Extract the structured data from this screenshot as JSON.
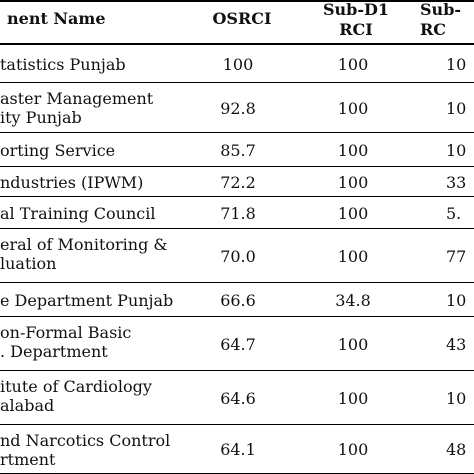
{
  "header": {
    "name": "nent Name",
    "osrci": "OSRCI",
    "sub_d1": "Sub-D1\nRCI",
    "sub_d2": "Sub-\nRC"
  },
  "rows": [
    {
      "name": "tatistics Punjab",
      "osrci": "100",
      "sub_d1": "100",
      "sub_d2": "10"
    },
    {
      "name": "aster Management\nity Punjab",
      "osrci": "92.8",
      "sub_d1": "100",
      "sub_d2": "10"
    },
    {
      "name": "orting Service",
      "osrci": "85.7",
      "sub_d1": "100",
      "sub_d2": "10"
    },
    {
      "name": "ndustries (IPWM)",
      "osrci": "72.2",
      "sub_d1": "100",
      "sub_d2": "33"
    },
    {
      "name": "al Training Council",
      "osrci": "71.8",
      "sub_d1": "100",
      "sub_d2": "5."
    },
    {
      "name": "eral of Monitoring &\nluation",
      "osrci": "70.0",
      "sub_d1": "100",
      "sub_d2": "77"
    },
    {
      "name": "e Department Punjab",
      "osrci": "66.6",
      "sub_d1": "34.8",
      "sub_d2": "10"
    },
    {
      "name": "on-Formal Basic\n. Department",
      "osrci": "64.7",
      "sub_d1": "100",
      "sub_d2": "43"
    },
    {
      "name": "itute of Cardiology\nalabad",
      "osrci": "64.6",
      "sub_d1": "100",
      "sub_d2": "10"
    },
    {
      "name": "nd Narcotics Control\nrtment",
      "osrci": "64.1",
      "sub_d1": "100",
      "sub_d2": "48"
    }
  ]
}
